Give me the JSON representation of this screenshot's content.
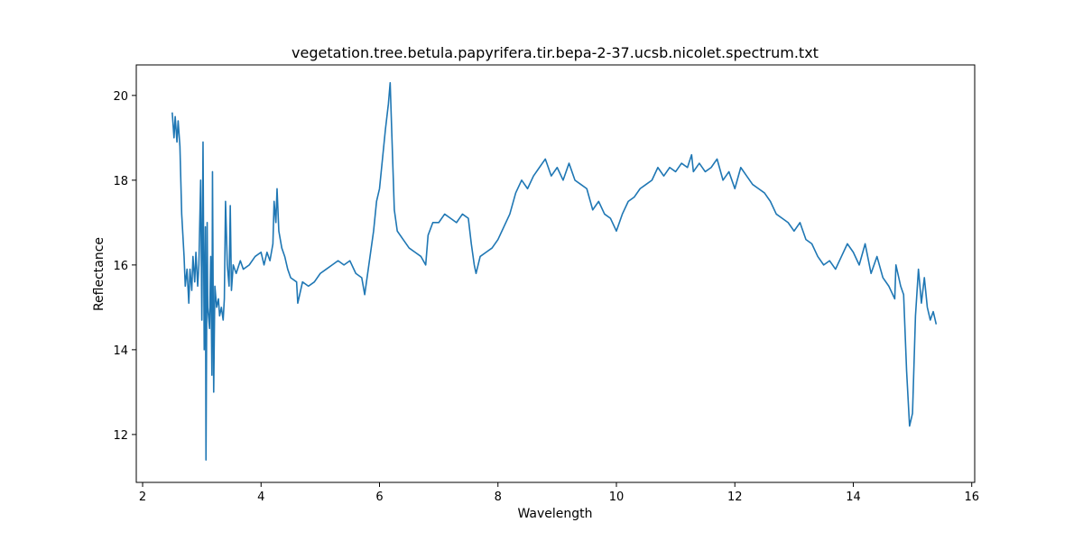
{
  "chart_data": {
    "type": "line",
    "title": "vegetation.tree.betula.papyrifera.tir.bepa-2-37.ucsb.nicolet.spectrum.txt",
    "x_label": "Wavelength",
    "y_label": "Reflectance",
    "xlim": [
      1.893,
      16.05
    ],
    "ylim": [
      10.87,
      20.72
    ],
    "xticks": [
      2,
      4,
      6,
      8,
      10,
      12,
      14,
      16
    ],
    "yticks": [
      12,
      14,
      16,
      18,
      20
    ],
    "series": [
      {
        "color": "#1f77b4",
        "x": [
          2.5,
          2.53,
          2.55,
          2.58,
          2.6,
          2.63,
          2.66,
          2.7,
          2.72,
          2.75,
          2.78,
          2.8,
          2.83,
          2.85,
          2.88,
          2.9,
          2.93,
          2.95,
          2.98,
          3.0,
          3.02,
          3.04,
          3.06,
          3.07,
          3.09,
          3.1,
          3.13,
          3.15,
          3.17,
          3.18,
          3.2,
          3.22,
          3.25,
          3.28,
          3.3,
          3.33,
          3.36,
          3.38,
          3.4,
          3.43,
          3.46,
          3.48,
          3.5,
          3.53,
          3.58,
          3.65,
          3.7,
          3.8,
          3.9,
          4.0,
          4.05,
          4.1,
          4.15,
          4.2,
          4.22,
          4.25,
          4.27,
          4.3,
          4.35,
          4.4,
          4.45,
          4.5,
          4.6,
          4.62,
          4.7,
          4.8,
          4.9,
          5.0,
          5.1,
          5.2,
          5.3,
          5.4,
          5.5,
          5.6,
          5.7,
          5.75,
          5.8,
          5.85,
          5.9,
          5.95,
          6.0,
          6.05,
          6.1,
          6.15,
          6.18,
          6.21,
          6.25,
          6.3,
          6.4,
          6.5,
          6.6,
          6.7,
          6.78,
          6.82,
          6.9,
          7.0,
          7.1,
          7.2,
          7.3,
          7.4,
          7.5,
          7.55,
          7.6,
          7.63,
          7.7,
          7.8,
          7.9,
          8.0,
          8.1,
          8.2,
          8.3,
          8.4,
          8.5,
          8.6,
          8.7,
          8.8,
          8.9,
          9.0,
          9.1,
          9.2,
          9.3,
          9.4,
          9.5,
          9.6,
          9.7,
          9.8,
          9.9,
          10.0,
          10.1,
          10.2,
          10.3,
          10.4,
          10.5,
          10.6,
          10.7,
          10.8,
          10.9,
          11.0,
          11.1,
          11.2,
          11.27,
          11.3,
          11.4,
          11.5,
          11.6,
          11.7,
          11.8,
          11.9,
          12.0,
          12.1,
          12.2,
          12.3,
          12.4,
          12.5,
          12.6,
          12.7,
          12.8,
          12.9,
          13.0,
          13.1,
          13.2,
          13.3,
          13.4,
          13.5,
          13.6,
          13.7,
          13.8,
          13.9,
          14.0,
          14.1,
          14.2,
          14.3,
          14.4,
          14.5,
          14.6,
          14.7,
          14.72,
          14.8,
          14.85,
          14.9,
          14.95,
          15.0,
          15.05,
          15.1,
          15.15,
          15.2,
          15.25,
          15.3,
          15.35,
          15.4
        ],
        "values": [
          19.6,
          19.0,
          19.5,
          18.9,
          19.4,
          18.8,
          17.2,
          16.2,
          15.5,
          15.9,
          15.1,
          15.9,
          15.4,
          16.2,
          15.6,
          16.3,
          15.5,
          16.0,
          18.0,
          14.7,
          18.9,
          14.0,
          16.9,
          11.4,
          17.0,
          15.0,
          14.5,
          16.2,
          13.4,
          18.2,
          13.0,
          15.5,
          15.0,
          15.2,
          14.8,
          15.0,
          14.7,
          15.2,
          17.5,
          16.0,
          15.5,
          17.4,
          15.4,
          16.0,
          15.8,
          16.1,
          15.9,
          16.0,
          16.2,
          16.3,
          16.0,
          16.3,
          16.1,
          16.5,
          17.5,
          17.0,
          17.8,
          16.8,
          16.4,
          16.2,
          15.9,
          15.7,
          15.6,
          15.1,
          15.6,
          15.5,
          15.6,
          15.8,
          15.9,
          16.0,
          16.1,
          16.0,
          16.1,
          15.8,
          15.7,
          15.3,
          15.8,
          16.3,
          16.8,
          17.5,
          17.8,
          18.5,
          19.2,
          19.8,
          20.3,
          19.0,
          17.3,
          16.8,
          16.6,
          16.4,
          16.3,
          16.2,
          16.0,
          16.7,
          17.0,
          17.0,
          17.2,
          17.1,
          17.0,
          17.2,
          17.1,
          16.5,
          16.0,
          15.8,
          16.2,
          16.3,
          16.4,
          16.6,
          16.9,
          17.2,
          17.7,
          18.0,
          17.8,
          18.1,
          18.3,
          18.5,
          18.1,
          18.3,
          18.0,
          18.4,
          18.0,
          17.9,
          17.8,
          17.3,
          17.5,
          17.2,
          17.1,
          16.8,
          17.2,
          17.5,
          17.6,
          17.8,
          17.9,
          18.0,
          18.3,
          18.1,
          18.3,
          18.2,
          18.4,
          18.3,
          18.6,
          18.2,
          18.4,
          18.2,
          18.3,
          18.5,
          18.0,
          18.2,
          17.8,
          18.3,
          18.1,
          17.9,
          17.8,
          17.7,
          17.5,
          17.2,
          17.1,
          17.0,
          16.8,
          17.0,
          16.6,
          16.5,
          16.2,
          16.0,
          16.1,
          15.9,
          16.2,
          16.5,
          16.3,
          16.0,
          16.5,
          15.8,
          16.2,
          15.7,
          15.5,
          15.2,
          16.0,
          15.5,
          15.3,
          13.5,
          12.2,
          12.5,
          14.8,
          15.9,
          15.1,
          15.7,
          15.0,
          14.7,
          14.9,
          14.6
        ]
      }
    ]
  }
}
